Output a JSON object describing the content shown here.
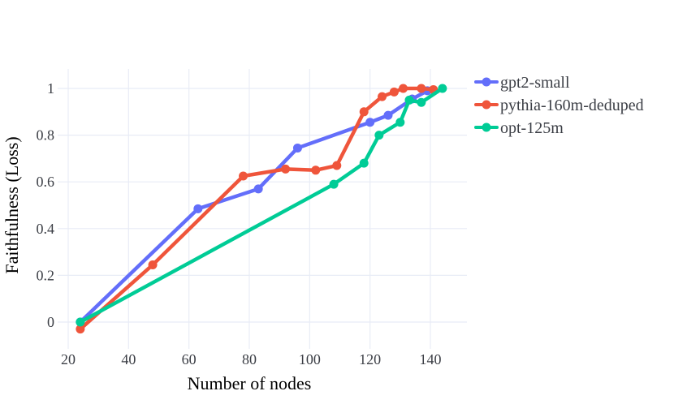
{
  "figure": {
    "background": "#ffffff",
    "grid_color": "#e8ecf6",
    "text_color": "#3b3e45"
  },
  "chart_data": {
    "type": "line",
    "title": "",
    "xlabel": "Number of nodes",
    "ylabel": "Faithfulness (Loss)",
    "x_ticks": [
      20,
      40,
      60,
      80,
      100,
      120,
      140
    ],
    "y_ticks": [
      0,
      0.2,
      0.4,
      0.6,
      0.8,
      1
    ],
    "xlim": [
      16.5,
      152
    ],
    "ylim": [
      -0.115,
      1.085
    ],
    "grid": true,
    "legend_position": "top-right",
    "marker_style": "line-with-dot",
    "series": [
      {
        "name": "gpt2-small",
        "color": "#636EFA",
        "x": [
          24,
          63,
          83,
          96,
          120,
          126,
          134,
          139
        ],
        "y": [
          0.0,
          0.485,
          0.57,
          0.745,
          0.855,
          0.885,
          0.955,
          0.99
        ]
      },
      {
        "name": "pythia-160m-deduped",
        "color": "#EF553B",
        "x": [
          24,
          48,
          78,
          92,
          102,
          109,
          118,
          124,
          128,
          131,
          137,
          141
        ],
        "y": [
          -0.03,
          0.245,
          0.625,
          0.655,
          0.65,
          0.67,
          0.9,
          0.965,
          0.985,
          1.0,
          1.0,
          0.995
        ]
      },
      {
        "name": "opt-125m",
        "color": "#00CC96",
        "x": [
          24,
          108,
          118,
          123,
          130,
          133,
          137,
          144
        ],
        "y": [
          0.0,
          0.59,
          0.68,
          0.8,
          0.855,
          0.95,
          0.94,
          1.0
        ]
      }
    ]
  }
}
